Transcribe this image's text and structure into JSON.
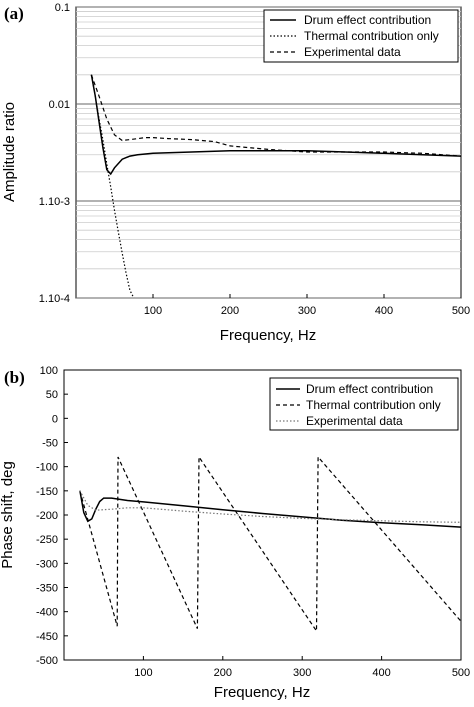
{
  "chart_data": [
    {
      "type": "line",
      "panel_label": "(a)",
      "xlabel": "Frequency, Hz",
      "ylabel": "Amplitude ratio",
      "xlim": [
        0,
        500
      ],
      "ylim": [
        0.0001,
        0.1
      ],
      "yscale": "log",
      "xticks": [
        100,
        200,
        300,
        400,
        500
      ],
      "yticks": [
        {
          "value": 0.1,
          "label": "0.1"
        },
        {
          "value": 0.01,
          "label": "0.01"
        },
        {
          "value": 0.001,
          "label": "1.10-3"
        },
        {
          "value": 0.0001,
          "label": "1.10-4"
        }
      ],
      "grid": true,
      "legend_position": "top-right",
      "series": [
        {
          "name": "Drum effect contribution",
          "style": "solid",
          "x": [
            20,
            25,
            30,
            35,
            40,
            45,
            50,
            60,
            70,
            80,
            100,
            150,
            200,
            250,
            300,
            350,
            400,
            450,
            500
          ],
          "y": [
            0.02,
            0.012,
            0.0065,
            0.0035,
            0.0021,
            0.0019,
            0.0022,
            0.0027,
            0.0029,
            0.003,
            0.0031,
            0.0032,
            0.0033,
            0.0033,
            0.0033,
            0.0032,
            0.0031,
            0.003,
            0.0029
          ]
        },
        {
          "name": "Thermal contribution only",
          "style": "dotted",
          "x": [
            20,
            25,
            30,
            35,
            40,
            45,
            50,
            55,
            60,
            65,
            70,
            75
          ],
          "y": [
            0.02,
            0.012,
            0.007,
            0.0042,
            0.0024,
            0.0014,
            0.0008,
            0.00048,
            0.00029,
            0.00018,
            0.00012,
            0.0001
          ]
        },
        {
          "name": "Experimental data",
          "style": "dashed",
          "x": [
            20,
            30,
            40,
            50,
            60,
            70,
            80,
            90,
            100,
            120,
            150,
            180,
            200,
            250,
            300,
            350,
            400,
            450,
            500
          ],
          "y": [
            0.02,
            0.012,
            0.007,
            0.0048,
            0.0042,
            0.0043,
            0.0044,
            0.0045,
            0.0045,
            0.0044,
            0.0043,
            0.0041,
            0.0037,
            0.0034,
            0.0032,
            0.0032,
            0.0032,
            0.0031,
            0.0029
          ]
        }
      ]
    },
    {
      "type": "line",
      "panel_label": "(b)",
      "xlabel": "Frequency, Hz",
      "ylabel": "Phase shift, deg",
      "xlim": [
        0,
        500
      ],
      "ylim": [
        -500,
        100
      ],
      "yscale": "linear",
      "xticks": [
        100,
        200,
        300,
        400,
        500
      ],
      "yticks": [
        {
          "value": 100,
          "label": "100"
        },
        {
          "value": 50,
          "label": "50"
        },
        {
          "value": 0,
          "label": "0"
        },
        {
          "value": -50,
          "label": "-50"
        },
        {
          "value": -100,
          "label": "-100"
        },
        {
          "value": -150,
          "label": "-150"
        },
        {
          "value": -200,
          "label": "-200"
        },
        {
          "value": -250,
          "label": "-250"
        },
        {
          "value": -300,
          "label": "-300"
        },
        {
          "value": -350,
          "label": "-350"
        },
        {
          "value": -400,
          "label": "-400"
        },
        {
          "value": -450,
          "label": "-450"
        },
        {
          "value": -500,
          "label": "-500"
        }
      ],
      "grid": false,
      "legend_position": "top-right",
      "series": [
        {
          "name": "Drum effect contribution",
          "style": "solid",
          "x": [
            20,
            25,
            30,
            35,
            40,
            45,
            50,
            60,
            80,
            100,
            150,
            200,
            250,
            300,
            350,
            400,
            450,
            500
          ],
          "y": [
            -150,
            -195,
            -213,
            -208,
            -188,
            -172,
            -165,
            -165,
            -170,
            -173,
            -181,
            -189,
            -197,
            -204,
            -211,
            -216,
            -220,
            -225
          ]
        },
        {
          "name": "Thermal contribution only",
          "style": "dashed",
          "x": [
            20,
            67,
            67,
            68,
            168,
            168,
            170,
            318,
            318,
            320,
            500
          ],
          "y": [
            -150,
            -430,
            -430,
            -80,
            -435,
            -435,
            -80,
            -440,
            -440,
            -80,
            -420
          ]
        },
        {
          "name": "Experimental data",
          "style": "dotted",
          "x": [
            20,
            30,
            40,
            60,
            80,
            100,
            150,
            200,
            250,
            300,
            350,
            400,
            450,
            500
          ],
          "y": [
            -150,
            -180,
            -190,
            -188,
            -185,
            -185,
            -192,
            -198,
            -203,
            -207,
            -210,
            -212,
            -214,
            -215
          ]
        }
      ]
    }
  ]
}
